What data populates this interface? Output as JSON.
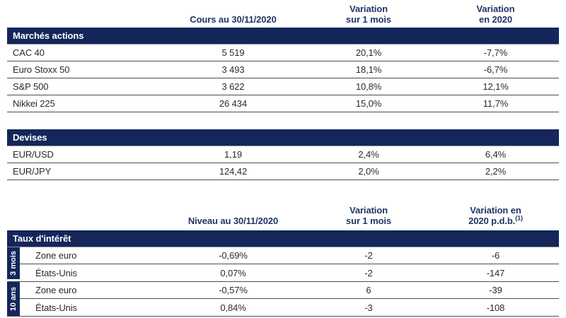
{
  "colors": {
    "band_background": "#14265a",
    "header_text": "#1f3666",
    "body_text": "#2a2a2a",
    "row_line": "#4d4d4d",
    "band_underline": "#8d8d98"
  },
  "tables": {
    "markets": {
      "section_title": "Marchés actions",
      "columns": [
        "Cours au 30/11/2020",
        "Variation\nsur 1 mois",
        "Variation\nen 2020"
      ],
      "rows": [
        {
          "label": "CAC 40",
          "values": [
            "5 519",
            "20,1%",
            "-7,7%"
          ]
        },
        {
          "label": "Euro Stoxx 50",
          "values": [
            "3 493",
            "18,1%",
            "-6,7%"
          ]
        },
        {
          "label": "S&P 500",
          "values": [
            "3 622",
            "10,8%",
            "12,1%"
          ]
        },
        {
          "label": "Nikkei 225",
          "values": [
            "26 434",
            "15,0%",
            "11,7%"
          ]
        }
      ]
    },
    "currencies": {
      "section_title": "Devises",
      "rows": [
        {
          "label": "EUR/USD",
          "values": [
            "1,19",
            "2,4%",
            "6,4%"
          ]
        },
        {
          "label": "EUR/JPY",
          "values": [
            "124,42",
            "2,0%",
            "2,2%"
          ]
        }
      ]
    },
    "rates": {
      "section_title": "Taux d'intérêt",
      "columns": [
        "Niveau au 30/11/2020",
        "Variation\nsur 1 mois",
        "Variation en\n2020 p.d.b."
      ],
      "footnote_marker": "(1)",
      "groups": [
        {
          "band": "3 mois",
          "rows": [
            {
              "label": "Zone euro",
              "values": [
                "-0,69%",
                "-2",
                "-6"
              ]
            },
            {
              "label": "États-Unis",
              "values": [
                "0,07%",
                "-2",
                "-147"
              ]
            }
          ]
        },
        {
          "band": "10 ans",
          "rows": [
            {
              "label": "Zone euro",
              "values": [
                "-0,57%",
                "6",
                "-39"
              ]
            },
            {
              "label": "États-Unis",
              "values": [
                "0,84%",
                "-3",
                "-108"
              ]
            }
          ]
        }
      ]
    }
  }
}
